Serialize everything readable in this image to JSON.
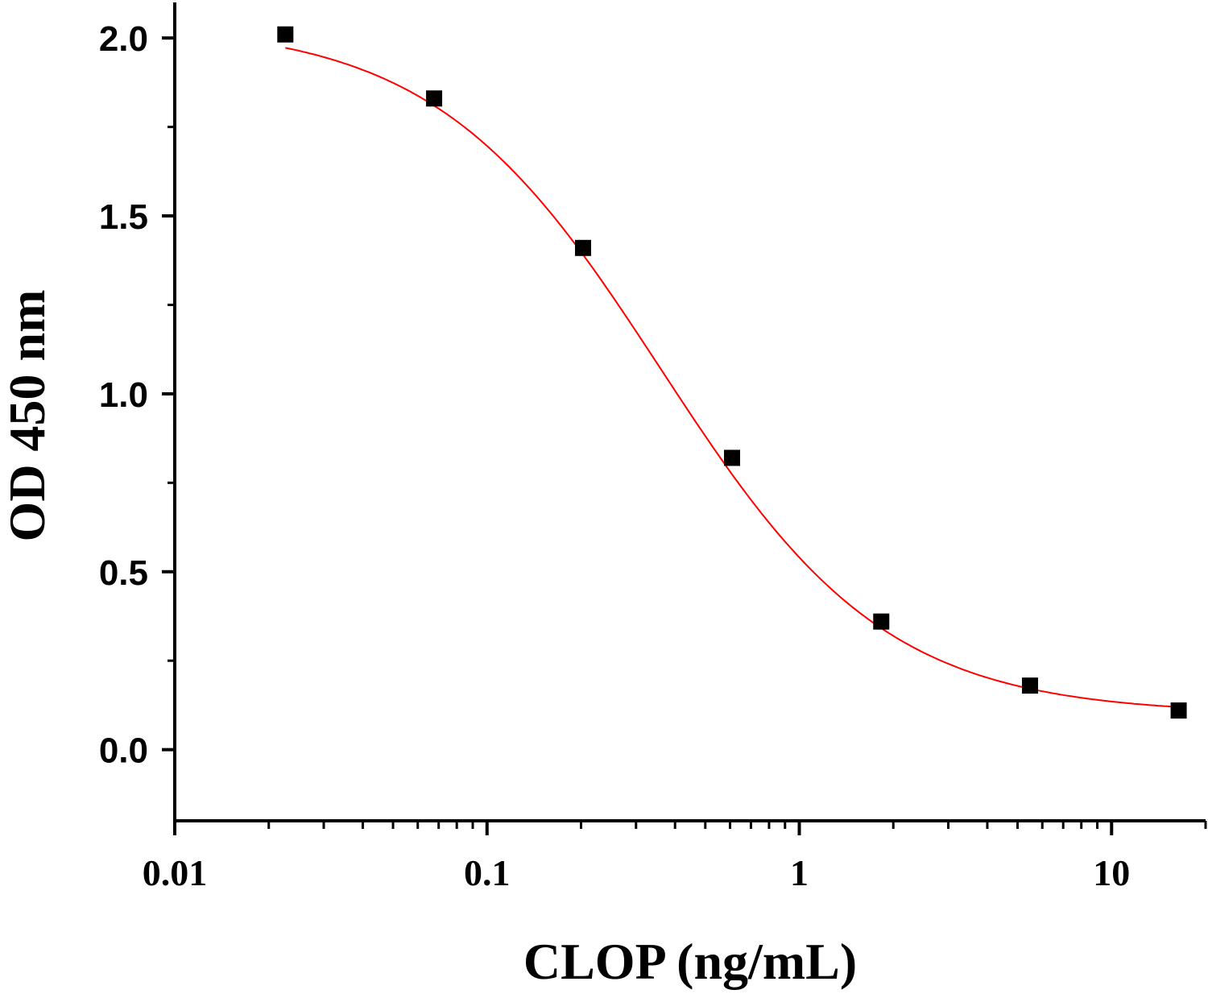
{
  "chart_data": {
    "type": "scatter",
    "title": "",
    "xlabel": "CLOP (ng/mL)",
    "ylabel": "OD 450 nm",
    "xscale": "log",
    "xlim": [
      0.01,
      20
    ],
    "ylim": [
      -0.2,
      2.1
    ],
    "xticks": [
      0.01,
      0.1,
      1,
      10
    ],
    "xtick_labels": [
      "0.01",
      "0.1",
      "1",
      "10"
    ],
    "yticks": [
      0.0,
      0.5,
      1.0,
      1.5,
      2.0
    ],
    "ytick_labels": [
      "0.0",
      "0.5",
      "1.0",
      "1.5",
      "2.0"
    ],
    "grid": false,
    "legend": "none",
    "points": {
      "x": [
        0.0226,
        0.0677,
        0.203,
        0.609,
        1.83,
        5.48,
        16.4
      ],
      "y": [
        2.01,
        1.83,
        1.41,
        0.82,
        0.36,
        0.18,
        0.11
      ],
      "marker": "square",
      "color": "#000000"
    },
    "fit": {
      "model": "four-parameter logistic",
      "top": 2.04,
      "bottom": 0.1,
      "ic50": 0.36,
      "hill_slope": 1.2,
      "color": "#ff0000"
    }
  }
}
